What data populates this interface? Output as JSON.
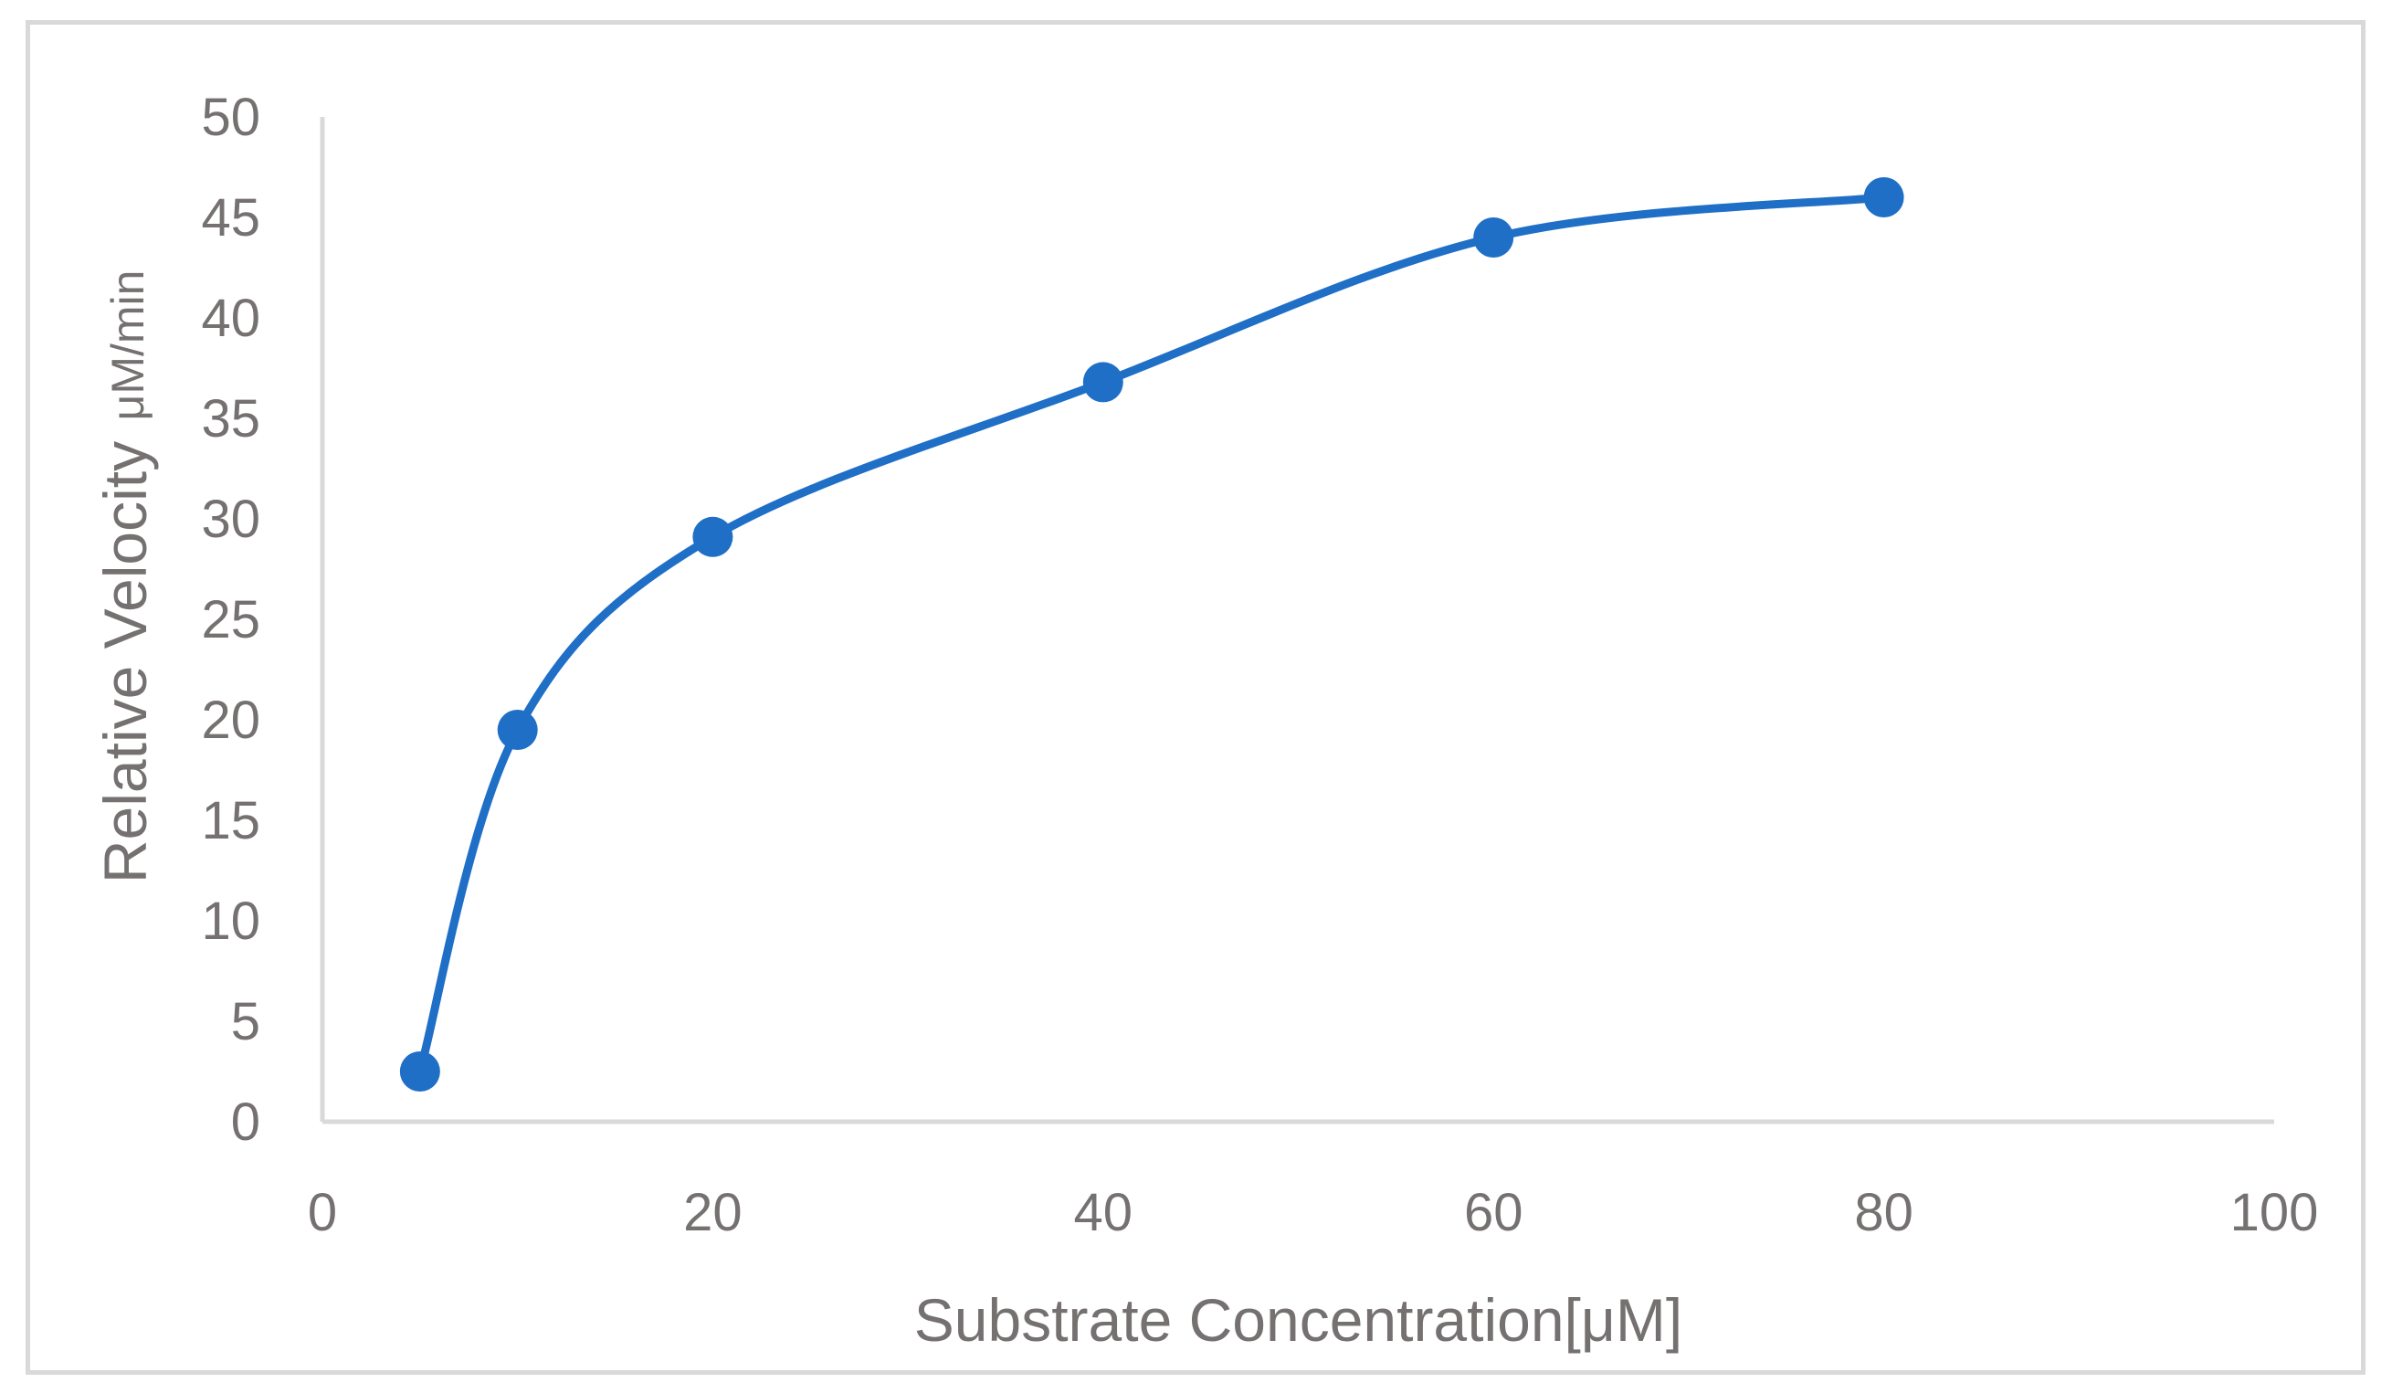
{
  "chart_data": {
    "type": "scatter",
    "title": "",
    "xlabel": "Substrate Concentration[μM]",
    "ylabel": "Relative Velocity",
    "ylabel_unit": "μM/min",
    "xlim": [
      0,
      100
    ],
    "ylim": [
      0,
      50
    ],
    "x_ticks": [
      0,
      20,
      40,
      60,
      80,
      100
    ],
    "y_ticks": [
      0,
      5,
      10,
      15,
      20,
      25,
      30,
      35,
      40,
      45,
      50
    ],
    "grid": false,
    "legend": "none",
    "smooth_line": true,
    "series": [
      {
        "color": "#1f6fc7",
        "x": [
          5,
          10,
          20,
          40,
          60,
          80
        ],
        "y": [
          2.5,
          19.5,
          29.1,
          36.8,
          44.0,
          46.0
        ]
      }
    ]
  }
}
